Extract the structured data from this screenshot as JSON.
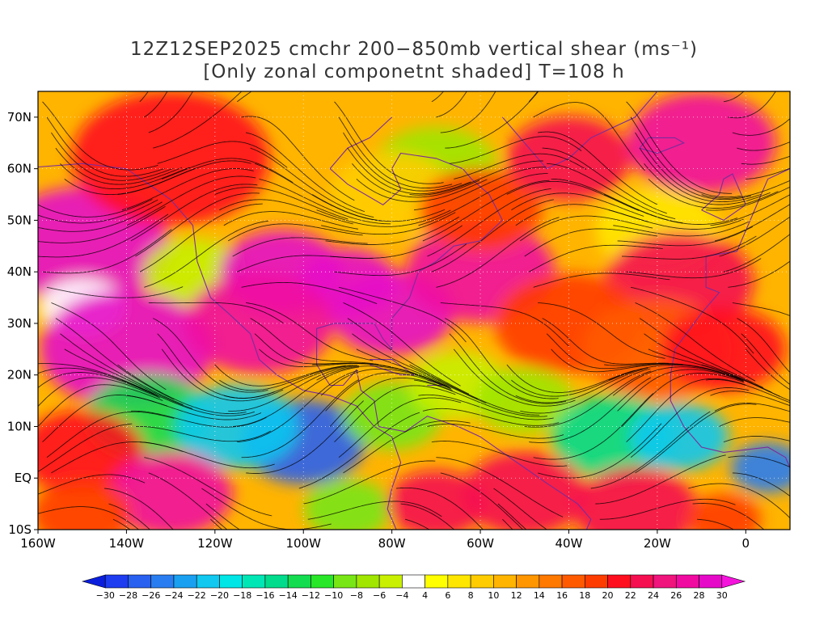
{
  "title": {
    "line1": "12Z12SEP2025 cmchr 200−850mb vertical shear (ms⁻¹)",
    "line2": "[Only zonal componetnt shaded] T=108 h"
  },
  "map": {
    "lon_range": [
      -160,
      10
    ],
    "lat_range": [
      -10,
      75
    ],
    "lat_ticks": [
      {
        "value": 70,
        "label": "70N"
      },
      {
        "value": 60,
        "label": "60N"
      },
      {
        "value": 50,
        "label": "50N"
      },
      {
        "value": 40,
        "label": "40N"
      },
      {
        "value": 30,
        "label": "30N"
      },
      {
        "value": 20,
        "label": "20N"
      },
      {
        "value": 10,
        "label": "10N"
      },
      {
        "value": 0,
        "label": "EQ"
      },
      {
        "value": -10,
        "label": "10S"
      }
    ],
    "lon_ticks": [
      {
        "value": -160,
        "label": "160W"
      },
      {
        "value": -140,
        "label": "140W"
      },
      {
        "value": -120,
        "label": "120W"
      },
      {
        "value": -100,
        "label": "100W"
      },
      {
        "value": -80,
        "label": "80W"
      },
      {
        "value": -60,
        "label": "60W"
      },
      {
        "value": -40,
        "label": "40W"
      },
      {
        "value": -20,
        "label": "20W"
      },
      {
        "value": 0,
        "label": "0"
      }
    ],
    "field_blobs": [
      {
        "lon": -150,
        "lat": 45,
        "v": 28,
        "r": 14
      },
      {
        "lon": -130,
        "lat": 62,
        "v": 20,
        "r": 16
      },
      {
        "lon": -125,
        "lat": 40,
        "v": -6,
        "r": 8
      },
      {
        "lon": -150,
        "lat": 33,
        "v": -4,
        "r": 7
      },
      {
        "lon": -105,
        "lat": 40,
        "v": 28,
        "r": 10
      },
      {
        "lon": -90,
        "lat": 38,
        "v": 28,
        "r": 8
      },
      {
        "lon": -140,
        "lat": 25,
        "v": 28,
        "r": 14
      },
      {
        "lon": -110,
        "lat": 30,
        "v": 26,
        "r": 12
      },
      {
        "lon": -80,
        "lat": 32,
        "v": 28,
        "r": 10
      },
      {
        "lon": -60,
        "lat": 40,
        "v": 26,
        "r": 12
      },
      {
        "lon": -70,
        "lat": 60,
        "v": -8,
        "r": 10
      },
      {
        "lon": -80,
        "lat": 55,
        "v": 8,
        "r": 10
      },
      {
        "lon": -60,
        "lat": 52,
        "v": 18,
        "r": 10
      },
      {
        "lon": -40,
        "lat": 62,
        "v": 22,
        "r": 10
      },
      {
        "lon": -10,
        "lat": 65,
        "v": 26,
        "r": 12
      },
      {
        "lon": -20,
        "lat": 48,
        "v": 6,
        "r": 10
      },
      {
        "lon": -15,
        "lat": 38,
        "v": 22,
        "r": 12
      },
      {
        "lon": -40,
        "lat": 30,
        "v": 18,
        "r": 12
      },
      {
        "lon": -20,
        "lat": 25,
        "v": 16,
        "r": 12
      },
      {
        "lon": -5,
        "lat": 25,
        "v": 20,
        "r": 10
      },
      {
        "lon": -135,
        "lat": 12,
        "v": -14,
        "r": 10
      },
      {
        "lon": -100,
        "lat": 7,
        "v": -28,
        "r": 10
      },
      {
        "lon": -115,
        "lat": 10,
        "v": -22,
        "r": 10
      },
      {
        "lon": -80,
        "lat": 12,
        "v": -10,
        "r": 8
      },
      {
        "lon": -65,
        "lat": 18,
        "v": -6,
        "r": 8
      },
      {
        "lon": -50,
        "lat": 15,
        "v": -8,
        "r": 8
      },
      {
        "lon": -30,
        "lat": 8,
        "v": -16,
        "r": 10
      },
      {
        "lon": -15,
        "lat": 8,
        "v": -22,
        "r": 8
      },
      {
        "lon": 5,
        "lat": 2,
        "v": -26,
        "r": 6
      },
      {
        "lon": -150,
        "lat": 5,
        "v": 20,
        "r": 10
      },
      {
        "lon": -130,
        "lat": -3,
        "v": 26,
        "r": 10
      },
      {
        "lon": -150,
        "lat": -7,
        "v": 18,
        "r": 8
      },
      {
        "lon": -90,
        "lat": -6,
        "v": -10,
        "r": 7
      },
      {
        "lon": -70,
        "lat": -5,
        "v": 22,
        "r": 8
      },
      {
        "lon": -50,
        "lat": -3,
        "v": 22,
        "r": 10
      },
      {
        "lon": -25,
        "lat": -6,
        "v": 22,
        "r": 10
      },
      {
        "lon": -5,
        "lat": -8,
        "v": 18,
        "r": 6
      }
    ]
  },
  "colorbar": {
    "levels": [
      -30,
      -28,
      -26,
      -24,
      -22,
      -20,
      -18,
      -16,
      -14,
      -12,
      -10,
      -8,
      -6,
      -4,
      4,
      6,
      8,
      10,
      12,
      14,
      16,
      18,
      20,
      22,
      24,
      26,
      28,
      30
    ],
    "colors": [
      "#0a1edc",
      "#1e3cf0",
      "#2860f0",
      "#2a7df0",
      "#1aa0f0",
      "#10c8f0",
      "#00e6e6",
      "#00e6b4",
      "#00dc8c",
      "#14dc50",
      "#28e628",
      "#78e614",
      "#a0e600",
      "#c8f000",
      "#ffffff",
      "#ffff00",
      "#ffe600",
      "#ffcc00",
      "#ffb400",
      "#ff9600",
      "#ff7800",
      "#ff5a00",
      "#ff3c00",
      "#ff0f1e",
      "#f50f50",
      "#f0147d",
      "#f00aa0",
      "#e60ac8",
      "#f514dc"
    ]
  }
}
